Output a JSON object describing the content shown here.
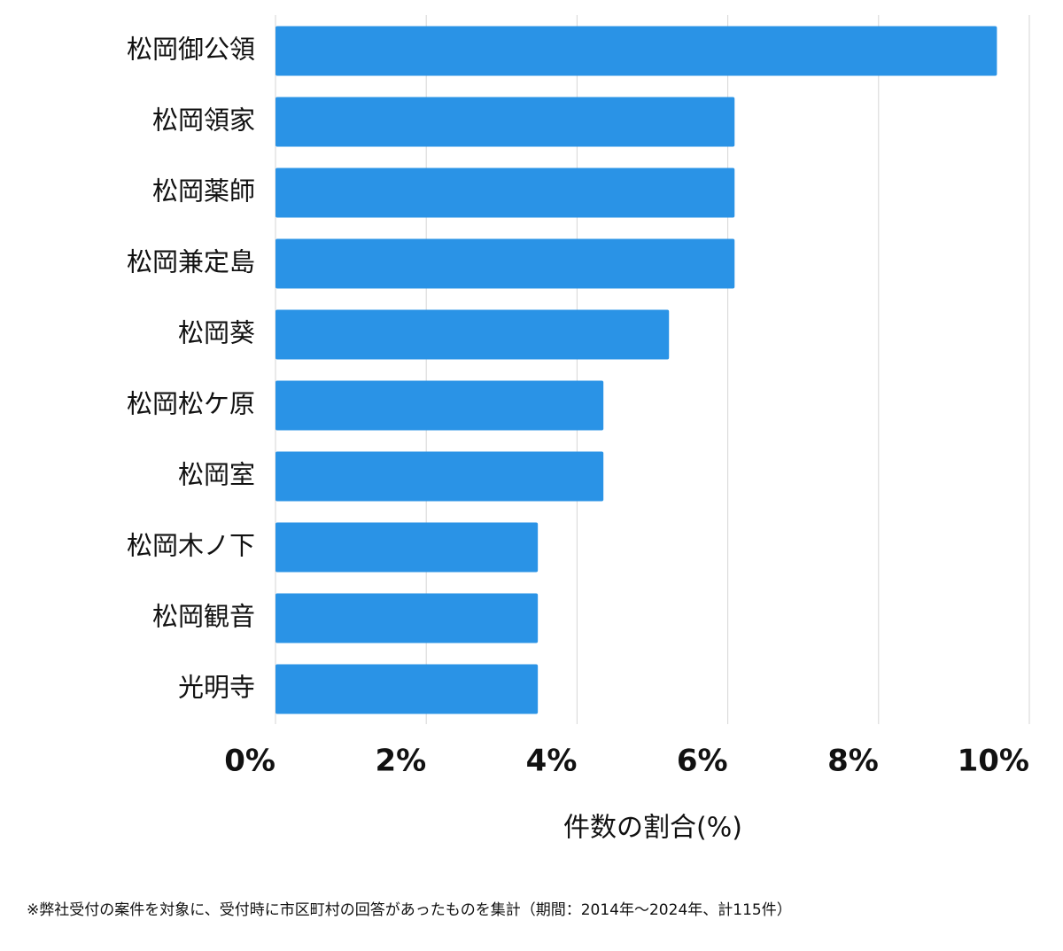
{
  "chart_data": {
    "type": "bar",
    "orientation": "horizontal",
    "categories": [
      "松岡御公領",
      "松岡領家",
      "松岡薬師",
      "松岡兼定島",
      "松岡葵",
      "松岡松ケ原",
      "松岡室",
      "松岡木ノ下",
      "松岡観音",
      "光明寺"
    ],
    "values": [
      9.57,
      6.09,
      6.09,
      6.09,
      5.22,
      4.35,
      4.35,
      3.48,
      3.48,
      3.48
    ],
    "color": "#2a93e6",
    "xlim": [
      0,
      10
    ],
    "xticks": [
      {
        "value": 0,
        "label": "0%"
      },
      {
        "value": 2,
        "label": "2%"
      },
      {
        "value": 4,
        "label": "4%"
      },
      {
        "value": 6,
        "label": "6%"
      },
      {
        "value": 8,
        "label": "8%"
      },
      {
        "value": 10,
        "label": "10%"
      }
    ],
    "grid": true,
    "x_label": "件数の割合(%)",
    "footnote": "※弊社受付の案件を対象に、受付時に市区町村の回答があったものを集計（期間：2014年〜2024年、計115件）"
  }
}
